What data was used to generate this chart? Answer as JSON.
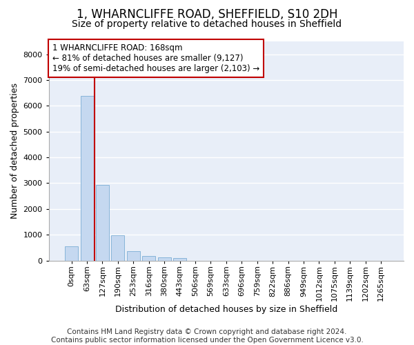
{
  "title": "1, WHARNCLIFFE ROAD, SHEFFIELD, S10 2DH",
  "subtitle": "Size of property relative to detached houses in Sheffield",
  "xlabel": "Distribution of detached houses by size in Sheffield",
  "ylabel": "Number of detached properties",
  "bar_color": "#c5d8f0",
  "bar_edge_color": "#7aadd4",
  "background_color": "#e8eef8",
  "grid_color": "#ffffff",
  "fig_background": "#ffffff",
  "categories": [
    "0sqm",
    "63sqm",
    "127sqm",
    "190sqm",
    "253sqm",
    "316sqm",
    "380sqm",
    "443sqm",
    "506sqm",
    "569sqm",
    "633sqm",
    "696sqm",
    "759sqm",
    "822sqm",
    "886sqm",
    "949sqm",
    "1012sqm",
    "1075sqm",
    "1139sqm",
    "1202sqm",
    "1265sqm"
  ],
  "values": [
    560,
    6380,
    2920,
    990,
    360,
    175,
    110,
    90,
    0,
    0,
    0,
    0,
    0,
    0,
    0,
    0,
    0,
    0,
    0,
    0,
    0
  ],
  "ylim": [
    0,
    8500
  ],
  "yticks": [
    0,
    1000,
    2000,
    3000,
    4000,
    5000,
    6000,
    7000,
    8000
  ],
  "vline_x": 1.5,
  "annotation_text_line1": "1 WHARNCLIFFE ROAD: 168sqm",
  "annotation_text_line2": "← 81% of detached houses are smaller (9,127)",
  "annotation_text_line3": "19% of semi-detached houses are larger (2,103) →",
  "footer_line1": "Contains HM Land Registry data © Crown copyright and database right 2024.",
  "footer_line2": "Contains public sector information licensed under the Open Government Licence v3.0.",
  "vline_color": "#c00000",
  "annotation_box_edgecolor": "#c00000",
  "title_fontsize": 12,
  "subtitle_fontsize": 10,
  "axis_label_fontsize": 9,
  "tick_fontsize": 8,
  "annotation_fontsize": 8.5,
  "footer_fontsize": 7.5
}
